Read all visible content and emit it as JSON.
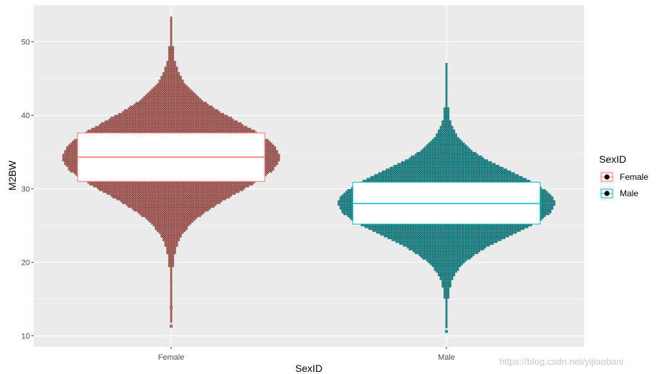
{
  "chart_data": {
    "type": "dotplot-boxplot",
    "x_label": "SexID",
    "y_label": "M2BW",
    "categories": [
      "Female",
      "Male"
    ],
    "y_ticks": [
      10,
      20,
      30,
      40,
      50
    ],
    "ylim": [
      8.5,
      55
    ],
    "grid": true,
    "legend": {
      "title": "SexID",
      "position": "right",
      "entries": [
        {
          "label": "Female",
          "color": "#F8766D"
        },
        {
          "label": "Male",
          "color": "#00BFC4"
        }
      ]
    },
    "series": [
      {
        "category": "Female",
        "color": "#F8766D",
        "box": {
          "q1": 31.0,
          "median": 34.3,
          "q3": 37.6
        },
        "min": 11.3,
        "max": 53.3,
        "outliers": [
          11.3,
          13.9
        ]
      },
      {
        "category": "Male",
        "color": "#00BFC4",
        "box": {
          "q1": 25.2,
          "median": 28.0,
          "q3": 30.9
        },
        "min": 10.6,
        "max": 47.0,
        "outliers": [
          10.6
        ]
      }
    ]
  },
  "watermark": "https://blog.csdn.net/yijiaobani"
}
